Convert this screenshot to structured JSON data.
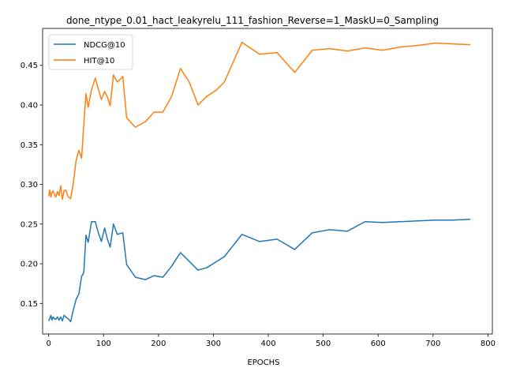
{
  "chart_data": {
    "type": "line",
    "title": "done_ntype_0.01_hact_leakyrelu_111_fashion_Reverse=1_MaskU=0_Sampling",
    "xlabel": "EPOCHS",
    "ylabel": "",
    "xlim": [
      -11,
      808
    ],
    "ylim": [
      0.1115,
      0.4965
    ],
    "xticks": [
      0,
      100,
      200,
      300,
      400,
      500,
      600,
      700,
      800
    ],
    "yticks": [
      0.15,
      0.2,
      0.25,
      0.3,
      0.35,
      0.4,
      0.45
    ],
    "ytick_labels": [
      "0.15",
      "0.20",
      "0.25",
      "0.30",
      "0.35",
      "0.40",
      "0.45"
    ],
    "grid": false,
    "legend_position": "upper left",
    "series": [
      {
        "name": "NDCG@10",
        "color": "#1f77b4",
        "x": [
          0,
          2,
          4,
          6,
          8,
          10,
          13,
          16,
          19,
          22,
          25,
          28,
          31,
          35,
          40,
          45,
          50,
          55,
          60,
          64,
          68,
          72,
          78,
          85,
          90,
          96,
          102,
          107,
          112,
          118,
          125,
          130,
          135,
          142,
          158,
          176,
          192,
          208,
          224,
          240,
          256,
          272,
          288,
          320,
          352,
          384,
          416,
          448,
          480,
          512,
          544,
          576,
          608,
          640,
          672,
          704,
          736,
          768
        ],
        "y": [
          0.128,
          0.131,
          0.135,
          0.129,
          0.133,
          0.131,
          0.13,
          0.133,
          0.129,
          0.133,
          0.128,
          0.135,
          0.133,
          0.131,
          0.127,
          0.142,
          0.155,
          0.162,
          0.184,
          0.189,
          0.236,
          0.227,
          0.253,
          0.253,
          0.24,
          0.228,
          0.245,
          0.231,
          0.221,
          0.25,
          0.237,
          0.238,
          0.239,
          0.199,
          0.183,
          0.18,
          0.185,
          0.183,
          0.197,
          0.214,
          0.203,
          0.192,
          0.195,
          0.209,
          0.237,
          0.228,
          0.231,
          0.218,
          0.239,
          0.243,
          0.241,
          0.253,
          0.252,
          0.253,
          0.254,
          0.255,
          0.255,
          0.256
        ]
      },
      {
        "name": "HIT@10",
        "color": "#ff7f0e",
        "x": [
          0,
          2,
          4,
          6,
          8,
          10,
          13,
          16,
          19,
          22,
          25,
          28,
          31,
          35,
          40,
          45,
          50,
          55,
          60,
          64,
          68,
          72,
          78,
          85,
          90,
          96,
          102,
          107,
          112,
          118,
          125,
          130,
          135,
          142,
          158,
          176,
          192,
          208,
          224,
          240,
          256,
          272,
          288,
          304,
          320,
          352,
          384,
          416,
          448,
          480,
          512,
          544,
          576,
          608,
          640,
          672,
          704,
          736,
          768
        ],
        "y": [
          0.285,
          0.293,
          0.284,
          0.29,
          0.292,
          0.288,
          0.284,
          0.291,
          0.286,
          0.298,
          0.281,
          0.292,
          0.293,
          0.285,
          0.282,
          0.302,
          0.33,
          0.343,
          0.333,
          0.376,
          0.414,
          0.397,
          0.419,
          0.434,
          0.421,
          0.407,
          0.417,
          0.41,
          0.399,
          0.438,
          0.429,
          0.432,
          0.436,
          0.384,
          0.372,
          0.379,
          0.391,
          0.391,
          0.411,
          0.446,
          0.429,
          0.4,
          0.411,
          0.418,
          0.429,
          0.479,
          0.464,
          0.466,
          0.441,
          0.469,
          0.471,
          0.468,
          0.472,
          0.469,
          0.473,
          0.475,
          0.478,
          0.477,
          0.476
        ]
      }
    ]
  }
}
